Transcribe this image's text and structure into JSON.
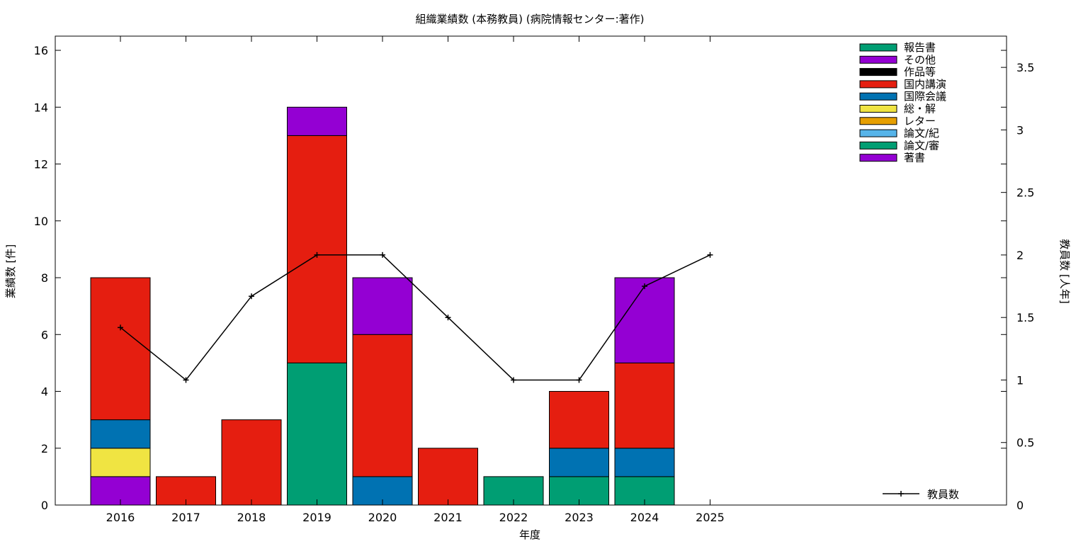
{
  "chart_data": {
    "type": "bar",
    "title": "組織業績数 (本務教員) (病院情報センター:著作)",
    "xlabel": "年度",
    "ylabel": "業績数 [件]",
    "y2label": "教員数 [人年]",
    "ylim": [
      0,
      16.5
    ],
    "y2lim": [
      0,
      3.75
    ],
    "yticks": [
      0,
      2,
      4,
      6,
      8,
      10,
      12,
      14,
      16
    ],
    "y2ticks": [
      "0",
      "0.5",
      "1",
      "1.5",
      "2",
      "2.5",
      "3",
      "3.5"
    ],
    "categories": [
      "2016",
      "2017",
      "2018",
      "2019",
      "2020",
      "2021",
      "2022",
      "2023",
      "2024",
      "2025"
    ],
    "stacked": true,
    "series": [
      {
        "name": "著書",
        "color": "#9400D3",
        "values": [
          1,
          0,
          0,
          0,
          0,
          0,
          0,
          0,
          0,
          0
        ]
      },
      {
        "name": "論文/審",
        "color": "#009E73",
        "values": [
          0,
          0,
          0,
          0,
          0,
          0,
          0,
          0,
          0,
          0
        ]
      },
      {
        "name": "論文/紀",
        "color": "#56B4E9",
        "values": [
          0,
          0,
          0,
          0,
          0,
          0,
          0,
          0,
          0,
          0
        ]
      },
      {
        "name": "レター",
        "color": "#E69F00",
        "values": [
          0,
          0,
          0,
          0,
          0,
          0,
          0,
          0,
          0,
          0
        ]
      },
      {
        "name": "総・解",
        "color": "#F0E442",
        "values": [
          1,
          0,
          0,
          0,
          0,
          0,
          0,
          0,
          0,
          0
        ]
      },
      {
        "name": "国際会議",
        "color": "#0072B2",
        "values": [
          1,
          0,
          0,
          0,
          1,
          0,
          0,
          1,
          1,
          0
        ]
      },
      {
        "name": "国内講演",
        "color": "#E51E10",
        "values": [
          5,
          1,
          3,
          8,
          5,
          2,
          0,
          2,
          3,
          0
        ]
      },
      {
        "name": "作品等",
        "color": "#000000",
        "values": [
          0,
          0,
          0,
          0,
          0,
          0,
          0,
          0,
          0,
          0
        ]
      },
      {
        "name": "その他",
        "color": "#9400D3",
        "values": [
          0,
          0,
          0,
          1,
          2,
          0,
          0,
          0,
          3,
          0
        ]
      },
      {
        "name": "報告書",
        "color": "#009E73",
        "values": [
          0,
          0,
          0,
          5,
          0,
          0,
          1,
          1,
          1,
          0
        ],
        "stack_position": "bottom"
      }
    ],
    "line": {
      "name": "教員数",
      "color": "#000000",
      "values": [
        1.42,
        1.0,
        1.67,
        2.0,
        2.0,
        1.5,
        1.0,
        1.0,
        1.75,
        2.0
      ]
    },
    "legend_order": [
      "報告書",
      "その他",
      "作品等",
      "国内講演",
      "国際会議",
      "総・解",
      "レター",
      "論文/紀",
      "論文/審",
      "著書"
    ],
    "legend_position": "top-right",
    "grid": false
  }
}
